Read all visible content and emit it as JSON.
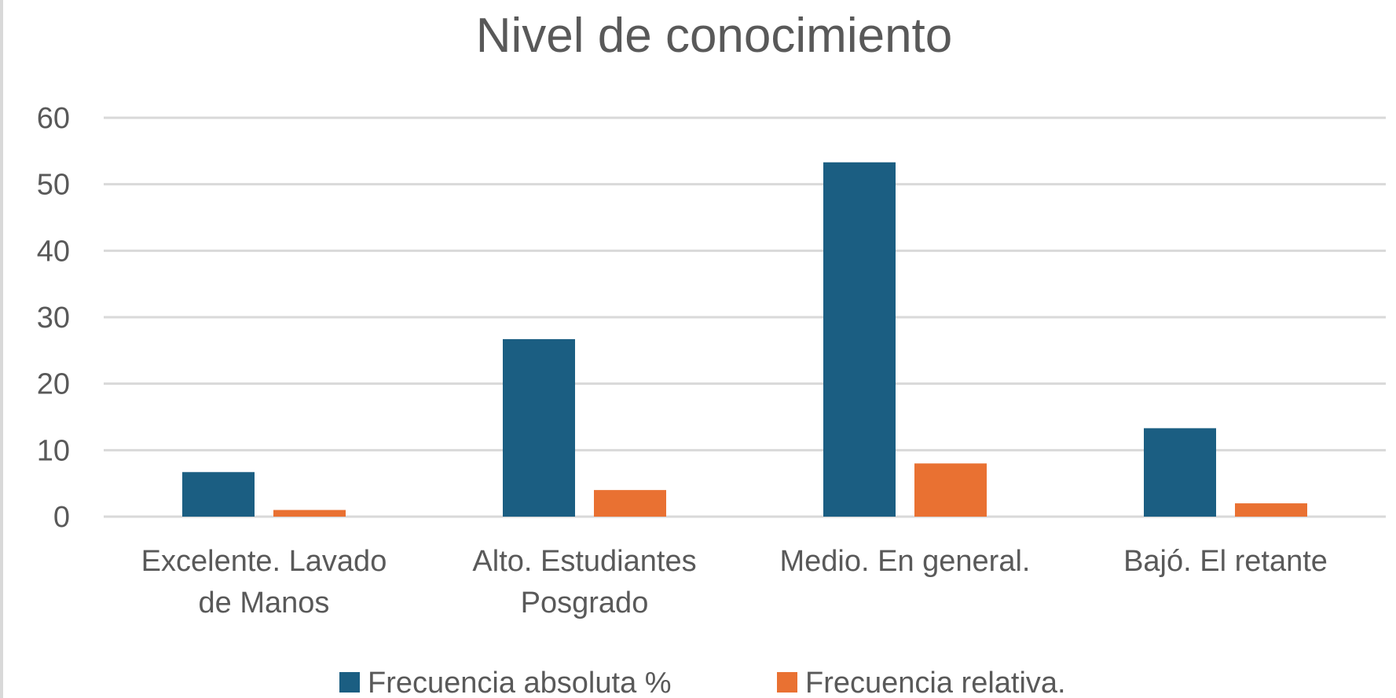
{
  "chart_data": {
    "type": "bar",
    "title": "Nivel de conocimiento",
    "xlabel": "",
    "ylabel": "",
    "categories": [
      [
        "Excelente. Lavado",
        "de Manos"
      ],
      [
        "Alto. Estudiantes",
        "Posgrado"
      ],
      [
        "Medio. En general."
      ],
      [
        "Bajó. El retante"
      ]
    ],
    "series": [
      {
        "name": "Frecuencia absoluta %",
        "color": "#1b5e82",
        "values": [
          6.7,
          26.7,
          53.3,
          13.3
        ]
      },
      {
        "name": "Frecuencia relativa.",
        "color": "#e97132",
        "values": [
          1,
          4,
          8,
          2
        ]
      }
    ],
    "ylim": [
      0,
      60
    ],
    "yticks": [
      0,
      10,
      20,
      30,
      40,
      50,
      60
    ],
    "grid": true,
    "legend_position": "bottom"
  }
}
